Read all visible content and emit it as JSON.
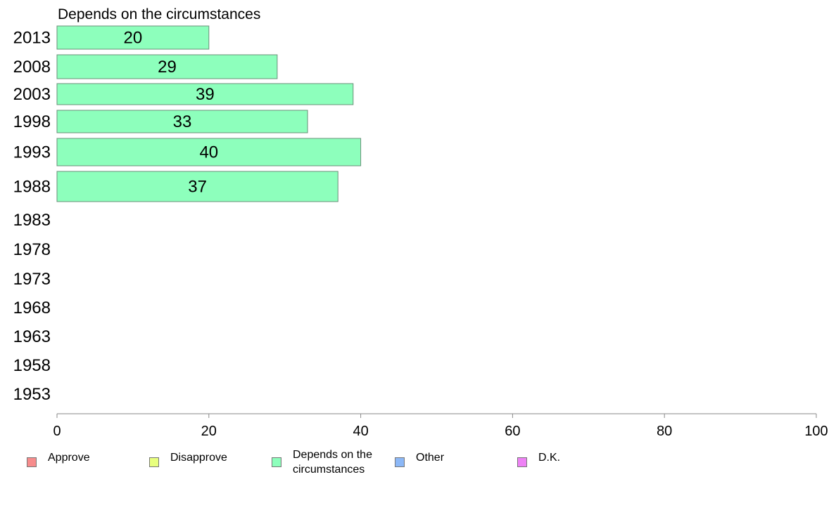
{
  "chart_data": {
    "type": "bar",
    "orientation": "horizontal",
    "title": "Depends on the circumstances",
    "categories": [
      "2013",
      "2008",
      "2003",
      "1998",
      "1993",
      "1988",
      "1983",
      "1978",
      "1973",
      "1968",
      "1963",
      "1958",
      "1953"
    ],
    "series": [
      {
        "name": "Depends on the circumstances",
        "color": "#8dffbc",
        "values": [
          20,
          29,
          39,
          33,
          40,
          37,
          null,
          null,
          null,
          null,
          null,
          null,
          null
        ]
      }
    ],
    "xlim": [
      0,
      100
    ],
    "xticks": [
      0,
      20,
      40,
      60,
      80,
      100
    ],
    "grid": false,
    "legend_position": "bottom"
  },
  "legend": [
    {
      "label": "Approve",
      "color": "#f78c8c"
    },
    {
      "label": "Disapprove",
      "color": "#e8ff7e"
    },
    {
      "label": "Depends on the circumstances",
      "color": "#8dffbc"
    },
    {
      "label": "Other",
      "color": "#8cb8f7"
    },
    {
      "label": "D.K.",
      "color": "#ee82f5"
    }
  ]
}
